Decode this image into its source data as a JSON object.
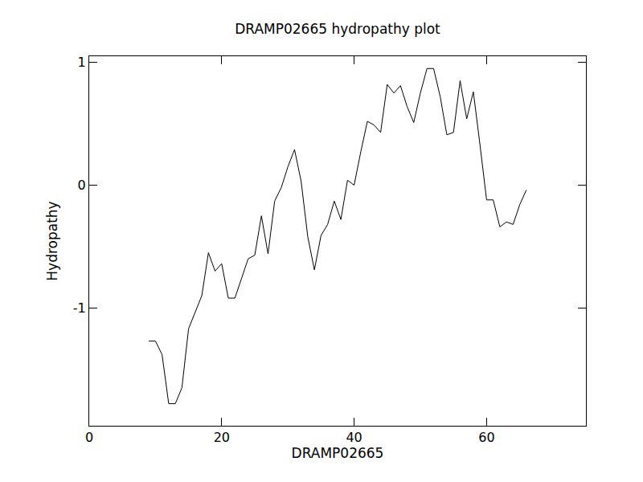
{
  "chart_data": {
    "type": "line",
    "title": "DRAMP02665 hydropathy plot",
    "x_label": "DRAMP02665",
    "y_label": "Hydropathy",
    "x": [
      9,
      10,
      11,
      12,
      13,
      14,
      15,
      16,
      17,
      18,
      19,
      20,
      21,
      22,
      23,
      24,
      25,
      26,
      27,
      28,
      29,
      30,
      31,
      32,
      33,
      34,
      35,
      36,
      37,
      38,
      39,
      40,
      41,
      42,
      43,
      44,
      45,
      46,
      47,
      48,
      49,
      50,
      51,
      52,
      53,
      54,
      55,
      56,
      57,
      58,
      59,
      60,
      61,
      62,
      63,
      64,
      65,
      66
    ],
    "values": [
      -1.27,
      -1.27,
      -1.38,
      -1.78,
      -1.78,
      -1.65,
      -1.17,
      -1.03,
      -0.9,
      -0.55,
      -0.7,
      -0.64,
      -0.92,
      -0.92,
      -0.76,
      -0.6,
      -0.57,
      -0.25,
      -0.56,
      -0.13,
      -0.02,
      0.15,
      0.29,
      0.03,
      -0.42,
      -0.69,
      -0.41,
      -0.32,
      -0.13,
      -0.28,
      0.04,
      0.0,
      0.27,
      0.52,
      0.49,
      0.43,
      0.82,
      0.75,
      0.81,
      0.64,
      0.51,
      0.75,
      0.95,
      0.95,
      0.72,
      0.41,
      0.43,
      0.85,
      0.54,
      0.76,
      0.33,
      -0.12,
      -0.12,
      -0.34,
      -0.3,
      -0.32,
      -0.16,
      -0.04
    ],
    "color": "#000000",
    "xlim": [
      0,
      75
    ],
    "xticks": [
      0,
      20,
      40,
      60
    ],
    "ylim": [
      -1.96,
      1.05
    ],
    "yticks": [
      -1,
      0,
      1
    ],
    "grid": false
  }
}
